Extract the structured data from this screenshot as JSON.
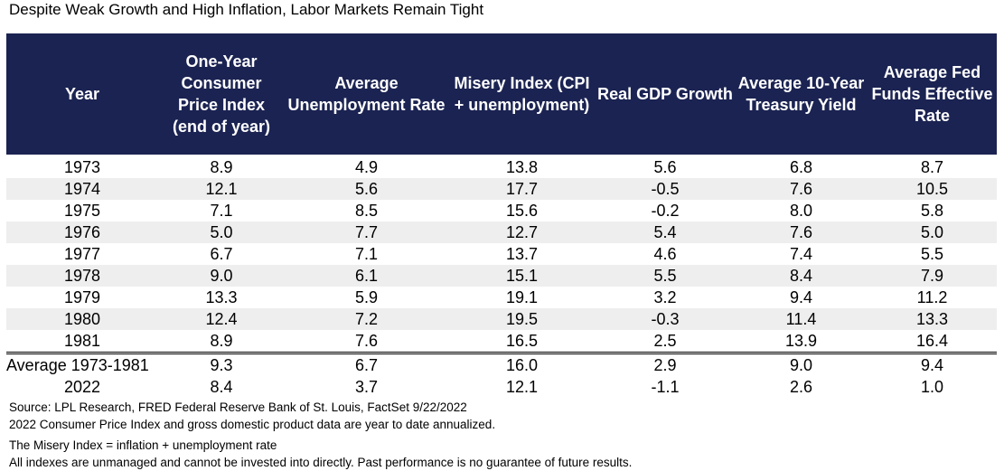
{
  "title": "Despite Weak Growth and High Inflation, Labor Markets Remain Tight",
  "colors": {
    "header_bg": "#1b2352",
    "header_text": "#ffffff",
    "band": "#eeeeee"
  },
  "chart_data": {
    "type": "table",
    "columns": [
      "Year",
      "One-Year Consumer Price Index (end of year)",
      "Average Unemployment Rate",
      "Misery Index (CPI + unemployment)",
      "Real GDP Growth",
      "Average 10-Year Treasury Yield",
      "Average Fed Funds Effective Rate"
    ],
    "rows": [
      [
        "1973",
        "8.9",
        "4.9",
        "13.8",
        "5.6",
        "6.8",
        "8.7"
      ],
      [
        "1974",
        "12.1",
        "5.6",
        "17.7",
        "-0.5",
        "7.6",
        "10.5"
      ],
      [
        "1975",
        "7.1",
        "8.5",
        "15.6",
        "-0.2",
        "8.0",
        "5.8"
      ],
      [
        "1976",
        "5.0",
        "7.7",
        "12.7",
        "5.4",
        "7.6",
        "5.0"
      ],
      [
        "1977",
        "6.7",
        "7.1",
        "13.7",
        "4.6",
        "7.4",
        "5.5"
      ],
      [
        "1978",
        "9.0",
        "6.1",
        "15.1",
        "5.5",
        "8.4",
        "7.9"
      ],
      [
        "1979",
        "13.3",
        "5.9",
        "19.1",
        "3.2",
        "9.4",
        "11.2"
      ],
      [
        "1980",
        "12.4",
        "7.2",
        "19.5",
        "-0.3",
        "11.4",
        "13.3"
      ],
      [
        "1981",
        "8.9",
        "7.6",
        "16.5",
        "2.5",
        "13.9",
        "16.4"
      ]
    ],
    "summary_rows": [
      [
        "Average 1973-1981",
        "9.3",
        "6.7",
        "16.0",
        "2.9",
        "9.0",
        "9.4"
      ],
      [
        "2022",
        "8.4",
        "3.7",
        "12.1",
        "-1.1",
        "2.6",
        "1.0"
      ]
    ]
  },
  "notes": [
    "Source: LPL Research, FRED Federal Reserve Bank of St. Louis, FactSet 9/22/2022",
    "2022 Consumer Price Index and gross domestic product data are year to date annualized.",
    "The Misery Index = inflation + unemployment rate",
    "All indexes are unmanaged and cannot be invested into directly. Past performance is no guarantee of future results."
  ]
}
